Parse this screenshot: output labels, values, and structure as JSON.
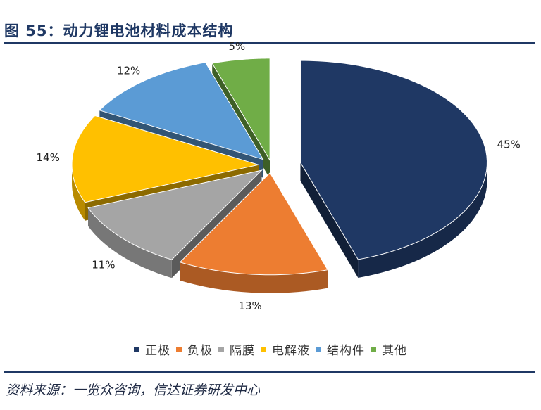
{
  "title": "图 55：动力锂电池材料成本结构",
  "source": "资料来源：一览众咨询，信达证券研发中心",
  "chart_data": {
    "type": "pie",
    "categories": [
      "正极",
      "负极",
      "隔膜",
      "电解液",
      "结构件",
      "其他"
    ],
    "values": [
      45,
      13,
      11,
      14,
      12,
      5
    ],
    "labels": [
      "45%",
      "13%",
      "11%",
      "14%",
      "12%",
      "5%"
    ],
    "colors": [
      "#1f3864",
      "#ed7d31",
      "#a5a5a5",
      "#ffc000",
      "#5b9bd5",
      "#70ad47"
    ],
    "legend_position": "bottom",
    "style": "3d-exploded"
  }
}
